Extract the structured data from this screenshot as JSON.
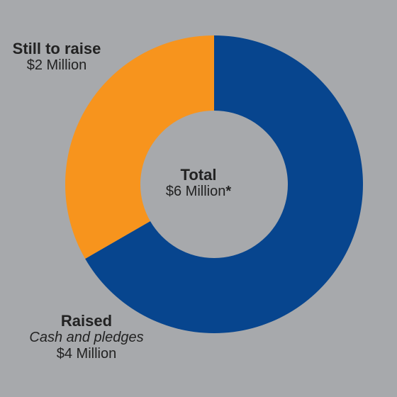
{
  "colors": {
    "background": "#a7a9ac",
    "raised": "#07458e",
    "still_to_raise": "#f7941d",
    "text": "#222222"
  },
  "chart_data": {
    "type": "pie",
    "donut": true,
    "slices": [
      {
        "name": "Raised",
        "value": 4,
        "label": "$4 Million",
        "note": "Cash and pledges",
        "color": "#07458e"
      },
      {
        "name": "Still to raise",
        "value": 2,
        "label": "$2 Million",
        "color": "#f7941d"
      }
    ],
    "center": {
      "title": "Total",
      "value": "$6 Million",
      "footnote_mark": "*"
    }
  }
}
